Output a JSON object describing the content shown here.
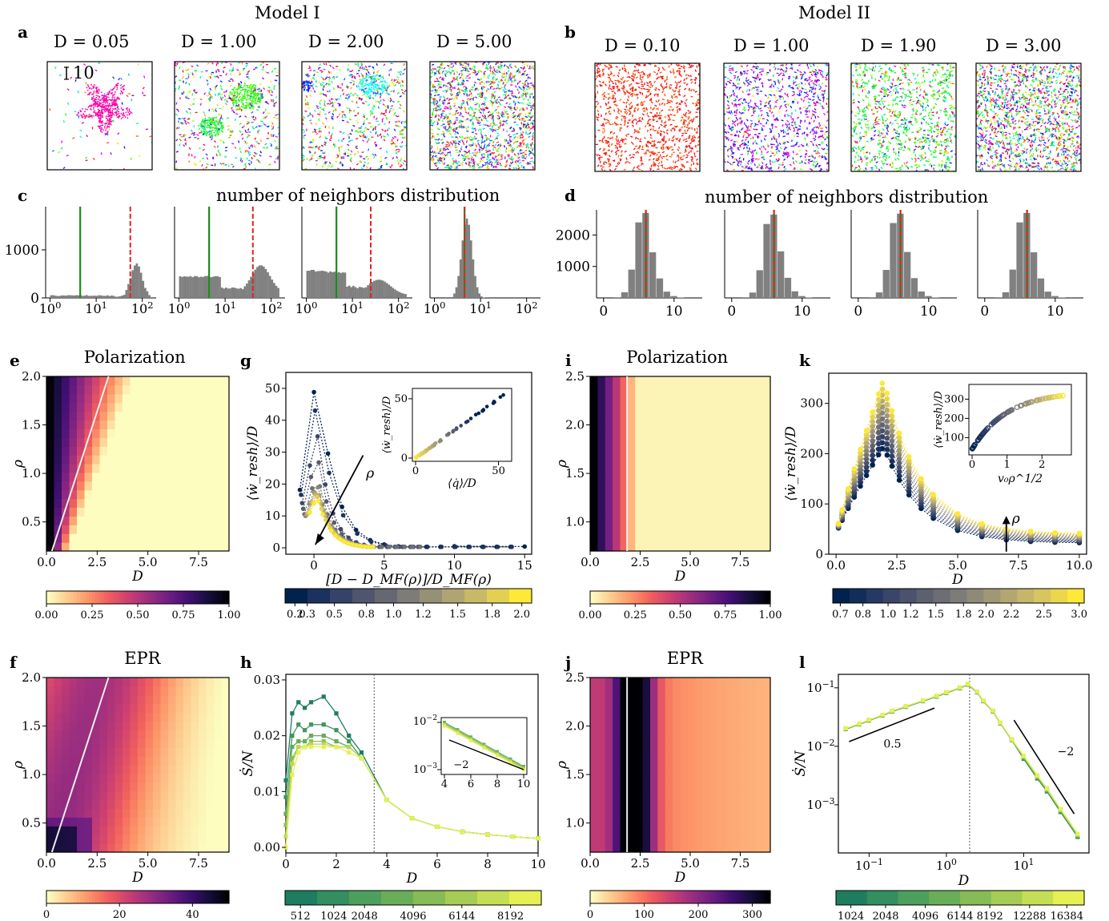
{
  "header": {
    "model1": "Model I",
    "model2": "Model II",
    "hist_title_c": "number of neighbors distribution",
    "hist_title_d": "number of neighbors distribution",
    "scale_bar": "10"
  },
  "panel_labels": {
    "a": "a",
    "b": "b",
    "c": "c",
    "d": "d",
    "e": "e",
    "f": "f",
    "g": "g",
    "h": "h",
    "i": "i",
    "j": "j",
    "k": "k",
    "l": "l"
  },
  "snapshots": {
    "model1": [
      {
        "title": "D = 0.05",
        "hue": 320,
        "mode": "cluster"
      },
      {
        "title": "D = 1.00",
        "hue": 110,
        "mode": "clusters"
      },
      {
        "title": "D = 2.00",
        "hue": 180,
        "mode": "mixed"
      },
      {
        "title": "D = 5.00",
        "hue": 0,
        "mode": "gas"
      }
    ],
    "model2": [
      {
        "title": "D = 0.10",
        "hue": 8,
        "mode": "flock"
      },
      {
        "title": "D = 1.00",
        "hue": 270,
        "mode": "flock2"
      },
      {
        "title": "D = 1.90",
        "hue": 120,
        "mode": "mixed2"
      },
      {
        "title": "D = 3.00",
        "hue": 0,
        "mode": "gas"
      }
    ]
  },
  "chart_data": [
    {
      "panel": "c",
      "type": "bar",
      "scale_x": "log",
      "xlim": [
        0.8,
        200
      ],
      "yticks": [
        0,
        1000
      ],
      "xticklabels": [
        "10^0",
        "10^1",
        "10^2"
      ],
      "histograms": [
        {
          "shape": "right",
          "green": 4.5,
          "red": 55
        },
        {
          "shape": "bimodal",
          "green": 4.5,
          "red": 40
        },
        {
          "shape": "left",
          "green": 4.5,
          "red": 25
        },
        {
          "shape": "narrow",
          "green": 4.5,
          "red": 4.5
        }
      ]
    },
    {
      "panel": "d",
      "type": "bar",
      "xlim": [
        -1,
        14
      ],
      "yticks": [
        1000,
        2000
      ],
      "xticks": [
        0,
        10
      ],
      "histograms": [
        {
          "counts": [
            20,
            180,
            900,
            2400,
            2700,
            1450,
            620,
            200,
            60,
            15
          ],
          "green": 6,
          "red": 6
        },
        {
          "counts": [
            20,
            170,
            880,
            2350,
            2650,
            1480,
            640,
            210,
            60,
            15
          ],
          "green": 6,
          "red": 6
        },
        {
          "counts": [
            20,
            175,
            890,
            2380,
            2680,
            1460,
            630,
            205,
            60,
            15
          ],
          "green": 6,
          "red": 6
        },
        {
          "counts": [
            20,
            180,
            900,
            2400,
            2700,
            1450,
            620,
            200,
            60,
            15
          ],
          "green": 6,
          "red": 6
        }
      ]
    },
    {
      "panel": "e",
      "type": "heatmap",
      "title": "Polarization",
      "xlabel": "D",
      "ylabel": "ρ",
      "xlim": [
        0,
        9
      ],
      "ylim": [
        0.2,
        2.0
      ],
      "xticks": [
        "0.0",
        "2.5",
        "5.0",
        "7.5"
      ],
      "yticks": [
        "0.5",
        "1.0",
        "1.5",
        "2.0"
      ],
      "colormap": "magma_r",
      "colorbar_ticks": [
        "0.00",
        "0.25",
        "0.50",
        "0.75",
        "1.00"
      ],
      "line": "white diagonal"
    },
    {
      "panel": "f",
      "type": "heatmap",
      "title": "EPR",
      "xlabel": "D",
      "ylabel": "ρ",
      "xlim": [
        0,
        9
      ],
      "ylim": [
        0.2,
        2.0
      ],
      "xticks": [
        "0.0",
        "2.5",
        "5.0",
        "7.5"
      ],
      "yticks": [
        "0.5",
        "1.0",
        "1.5",
        "2.0"
      ],
      "colormap": "magma_r",
      "colorbar_ticks": [
        "0",
        "20",
        "40"
      ],
      "line": "white diagonal"
    },
    {
      "panel": "g",
      "type": "scatter",
      "xlabel": "[D − D_MF(ρ)]/D_MF(ρ)",
      "ylabel": "⟨ẇ_resh⟩/D",
      "xlim": [
        -2,
        15.5
      ],
      "ylim": [
        -2,
        55
      ],
      "xticks": [
        "0",
        "5",
        "10",
        "15"
      ],
      "yticks": [
        "0",
        "10",
        "20",
        "30",
        "40",
        "50"
      ],
      "annotation": "ρ",
      "inset": {
        "xlabel": "⟨q̇⟩/D",
        "ylabel": "⟨ẇ_resh⟩/D",
        "xticks": [
          "0",
          "50"
        ],
        "yticks": [
          "0",
          "50"
        ]
      },
      "colorbar_ticks": [
        "0.2",
        "0.3",
        "0.5",
        "0.8",
        "1.0",
        "1.2",
        "1.5",
        "1.8",
        "2.0"
      ],
      "series_peaks": [
        53,
        45,
        35,
        28,
        22,
        19,
        18,
        17,
        16,
        15
      ]
    },
    {
      "panel": "h",
      "type": "line",
      "xlabel": "D",
      "ylabel": "Ṡ/N",
      "xlim": [
        0,
        10
      ],
      "ylim": [
        -0.001,
        0.031
      ],
      "xticks": [
        "0",
        "2",
        "4",
        "6",
        "8",
        "10"
      ],
      "yticks": [
        "0.00",
        "0.01",
        "0.02",
        "0.03"
      ],
      "vline": 3.5,
      "series": [
        {
          "name": "512",
          "values": [
            0.012,
            0.024,
            0.026,
            0.025,
            0.026,
            0.027,
            0.024,
            0.02,
            0.017
          ]
        },
        {
          "name": "1024",
          "values": [
            0.009,
            0.02,
            0.022,
            0.021,
            0.022,
            0.022,
            0.021,
            0.019,
            0.016
          ]
        },
        {
          "name": "2048",
          "values": [
            0.006,
            0.018,
            0.019,
            0.019,
            0.02,
            0.02,
            0.019,
            0.018,
            0.016
          ]
        },
        {
          "name": "4096",
          "values": [
            0.004,
            0.016,
            0.018,
            0.018,
            0.019,
            0.019,
            0.018,
            0.018,
            0.016
          ]
        },
        {
          "name": "6144",
          "values": [
            0.002,
            0.015,
            0.018,
            0.018,
            0.0185,
            0.0185,
            0.018,
            0.018,
            0.016
          ]
        },
        {
          "name": "8192",
          "values": [
            0.0,
            0.013,
            0.017,
            0.018,
            0.018,
            0.018,
            0.018,
            0.017,
            0.016
          ]
        }
      ],
      "tail": {
        "x": [
          4,
          5,
          6,
          7,
          8,
          9,
          10
        ],
        "y": [
          0.0085,
          0.0052,
          0.0037,
          0.0028,
          0.0023,
          0.0019,
          0.0016
        ]
      },
      "inset": {
        "xticks": [
          "4",
          "6",
          "8",
          "10"
        ],
        "yticklabels": [
          "10^-2",
          "10^-3"
        ],
        "slope_label": "−2"
      },
      "colorbar_ticks": [
        "512",
        "1024",
        "2048",
        "4096",
        "6144",
        "8192"
      ]
    },
    {
      "panel": "i",
      "type": "heatmap",
      "title": "Polarization",
      "xlabel": "D",
      "ylabel": "ρ",
      "xlim": [
        0,
        9
      ],
      "ylim": [
        0.7,
        2.5
      ],
      "xticks": [
        "0.0",
        "2.5",
        "5.0",
        "7.5"
      ],
      "yticks": [
        "1.0",
        "1.5",
        "2.0",
        "2.5"
      ],
      "colormap": "magma_r",
      "colorbar_ticks": [
        "0.00",
        "0.25",
        "0.50",
        "0.75",
        "1.00"
      ],
      "line": "white vertical"
    },
    {
      "panel": "j",
      "type": "heatmap",
      "title": "EPR",
      "xlabel": "D",
      "ylabel": "ρ",
      "xlim": [
        0,
        9
      ],
      "ylim": [
        0.7,
        2.5
      ],
      "xticks": [
        "0.0",
        "2.5",
        "5.0",
        "7.5"
      ],
      "yticks": [
        "1.0",
        "1.5",
        "2.0",
        "2.5"
      ],
      "colormap": "magma_r",
      "colorbar_ticks": [
        "0",
        "100",
        "200",
        "300"
      ],
      "line": "white vertical"
    },
    {
      "panel": "k",
      "type": "scatter",
      "xlabel": "D",
      "ylabel": "⟨ẇ_resh⟩/D",
      "xlim": [
        -0.3,
        10.3
      ],
      "ylim": [
        0,
        360
      ],
      "xticks": [
        "0.0",
        "2.5",
        "5.0",
        "7.5",
        "10.0"
      ],
      "yticks": [
        "0",
        "100",
        "200",
        "300"
      ],
      "annotation": "ρ",
      "x": [
        0.1,
        0.25,
        0.5,
        0.75,
        1.0,
        1.25,
        1.5,
        1.75,
        1.9,
        2.1,
        2.3,
        2.6,
        3.0,
        3.5,
        4.0,
        5.0,
        6.0,
        7.0,
        8.0,
        9.0,
        10.0
      ],
      "inset": {
        "xlabel": "v₀ρ^1/2",
        "ylabel": "⟨ẇ_resh⟩/D",
        "xticks": [
          "0",
          "1",
          "2"
        ],
        "yticks": [
          "100",
          "200",
          "300"
        ]
      },
      "colorbar_ticks": [
        "0.7",
        "0.8",
        "1.0",
        "1.2",
        "1.5",
        "1.8",
        "2.0",
        "2.2",
        "2.5",
        "3.0"
      ]
    },
    {
      "panel": "l",
      "type": "line",
      "scale": "loglog",
      "xlabel": "D",
      "ylabel": "Ṡ/N",
      "xticklabels": [
        "10^-1",
        "10^0",
        "10^1"
      ],
      "yticklabels": [
        "10^-3",
        "10^-2",
        "10^-1"
      ],
      "x": [
        0.05,
        0.075,
        0.1,
        0.15,
        0.2,
        0.3,
        0.5,
        0.75,
        1.0,
        1.5,
        1.9,
        2.5,
        3.0,
        4.0,
        5.0,
        7.0,
        10,
        15,
        20,
        30,
        50
      ],
      "y": [
        0.02,
        0.024,
        0.028,
        0.034,
        0.04,
        0.048,
        0.06,
        0.072,
        0.083,
        0.1,
        0.115,
        0.085,
        0.06,
        0.04,
        0.025,
        0.013,
        0.0065,
        0.003,
        0.0018,
        0.0008,
        0.0003
      ],
      "vline": 2.0,
      "slope_labels": [
        "0.5",
        "−2"
      ],
      "colorbar_ticks": [
        "1024",
        "2048",
        "4096",
        "6144",
        "8192",
        "12288",
        "16384"
      ]
    }
  ]
}
